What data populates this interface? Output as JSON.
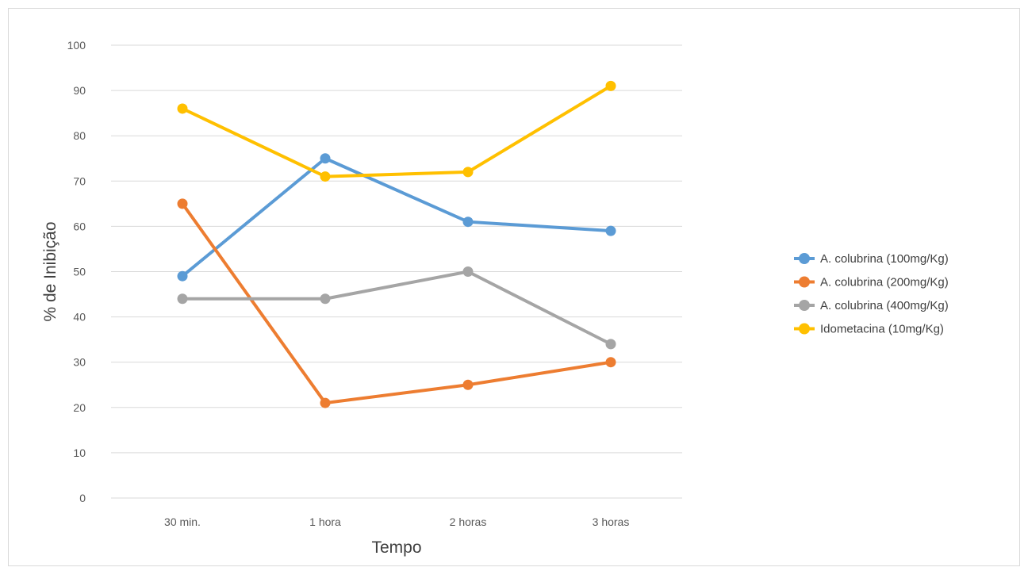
{
  "chart_data": {
    "type": "line",
    "title": "",
    "xlabel": "Tempo",
    "ylabel": "% de Inibição",
    "categories": [
      "30 min.",
      "1 hora",
      "2 horas",
      "3 horas"
    ],
    "ylim": [
      0,
      100
    ],
    "yticks": [
      0,
      10,
      20,
      30,
      40,
      50,
      60,
      70,
      80,
      90,
      100
    ],
    "grid": true,
    "legend_position": "right",
    "series": [
      {
        "name": "A. colubrina (100mg/Kg)",
        "color": "#5b9bd5",
        "values": [
          49,
          75,
          61,
          59
        ]
      },
      {
        "name": "A. colubrina (200mg/Kg)",
        "color": "#ed7d31",
        "values": [
          65,
          21,
          25,
          30
        ]
      },
      {
        "name": "A. colubrina (400mg/Kg)",
        "color": "#a5a5a5",
        "values": [
          44,
          44,
          50,
          34
        ]
      },
      {
        "name": "Idometacina (10mg/Kg)",
        "color": "#ffc000",
        "values": [
          86,
          71,
          72,
          91
        ]
      }
    ]
  }
}
